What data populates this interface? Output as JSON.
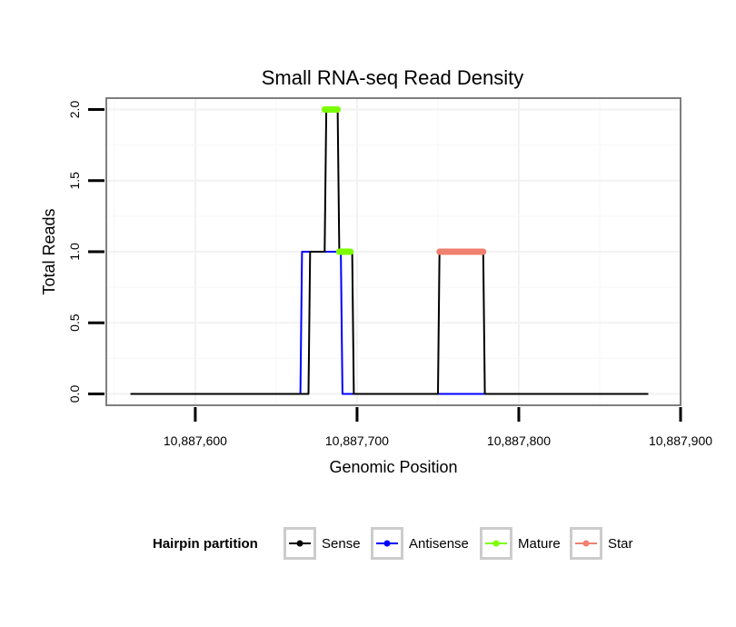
{
  "chart_data": {
    "type": "line",
    "title": "Small RNA-seq Read Density",
    "xlabel": "Genomic Position",
    "ylabel": "Total Reads",
    "xlim": [
      10887545,
      10887900
    ],
    "ylim": [
      -0.08,
      2.08
    ],
    "x_ticks": [
      10887600,
      10887700,
      10887800,
      10887900
    ],
    "x_tick_labels": [
      "10,887,600",
      "10,887,700",
      "10,887,800",
      "10,887,900"
    ],
    "y_ticks": [
      0,
      0.5,
      1,
      1.5,
      2
    ],
    "y_tick_labels": [
      "0.0",
      "0.5",
      "1.0",
      "1.5",
      "2.0"
    ],
    "grid": true,
    "legend": {
      "title": "Hairpin partition",
      "placement": "bottom",
      "entries": [
        {
          "name": "Sense",
          "color": "#000000"
        },
        {
          "name": "Antisense",
          "color": "#0000ff"
        },
        {
          "name": "Mature",
          "color": "#7cfc00"
        },
        {
          "name": "Star",
          "color": "#f08070"
        }
      ]
    },
    "series": [
      {
        "name": "Sense",
        "color": "#000000",
        "x": [
          10887560,
          10887670,
          10887671,
          10887680,
          10887681,
          10887688,
          10887689,
          10887697,
          10887698,
          10887725,
          10887726,
          10887750,
          10887751,
          10887778,
          10887779,
          10887880
        ],
        "y": [
          0,
          0,
          1,
          1,
          2,
          2,
          1,
          1,
          0,
          0,
          0,
          0,
          1,
          1,
          0,
          0
        ]
      },
      {
        "name": "Antisense",
        "color": "#0000ff",
        "x": [
          10887560,
          10887665,
          10887666,
          10887690,
          10887691,
          10887880
        ],
        "y": [
          0,
          0,
          1,
          1,
          0,
          0
        ]
      }
    ],
    "segments": [
      {
        "name": "Mature",
        "color": "#7cfc00",
        "x": [
          10887680,
          10887688
        ],
        "y": 2
      },
      {
        "name": "Mature",
        "color": "#7cfc00",
        "x": [
          10887689,
          10887696
        ],
        "y": 1
      },
      {
        "name": "Star",
        "color": "#f08070",
        "x": [
          10887751,
          10887778
        ],
        "y": 1
      }
    ]
  }
}
